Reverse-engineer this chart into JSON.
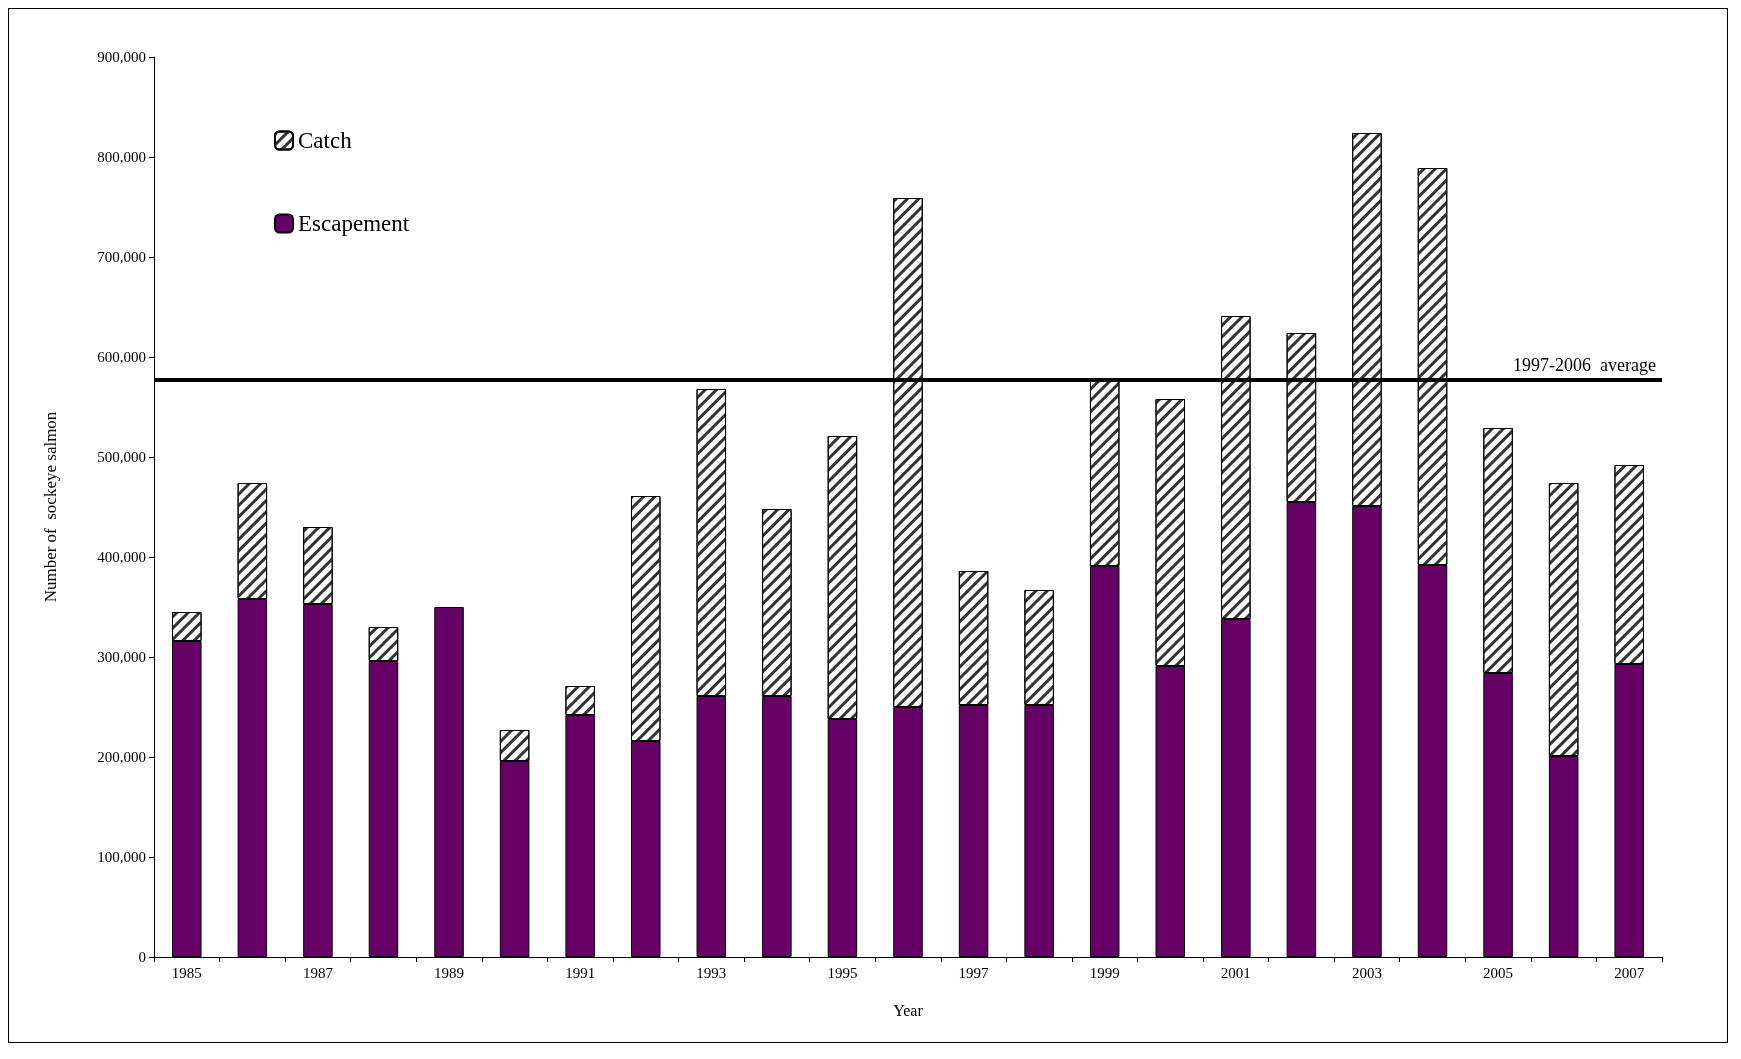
{
  "chart_data": {
    "type": "bar",
    "stacked": true,
    "xlabel": "Year",
    "ylabel": "Number of  sockeye salmon",
    "categories": [
      "1985",
      null,
      "1987",
      null,
      "1989",
      null,
      "1991",
      null,
      "1993",
      null,
      "1995",
      null,
      "1997",
      null,
      "1999",
      null,
      "2001",
      null,
      "2003",
      null,
      "2005",
      null,
      "2007"
    ],
    "series": [
      {
        "name": "Escapement",
        "color": "#660066",
        "values": [
          316000,
          358000,
          353000,
          296000,
          350000,
          196000,
          242000,
          216000,
          261000,
          261000,
          238000,
          250000,
          252000,
          252000,
          391000,
          291000,
          338000,
          455000,
          451000,
          392000,
          284000,
          201000,
          293000
        ]
      },
      {
        "name": "Catch",
        "color": "#ffffff",
        "values": [
          29000,
          116000,
          77000,
          34000,
          null,
          31000,
          29000,
          245000,
          307000,
          187000,
          283000,
          509000,
          134000,
          115000,
          185000,
          267000,
          303000,
          169000,
          373000,
          397000,
          245000,
          273000,
          199000
        ]
      }
    ],
    "ylim": [
      0,
      900000
    ],
    "yticks": [
      0,
      {
        "value": 100000,
        "label": "100,000"
      },
      {
        "value": 200000,
        "label": "200,000"
      },
      {
        "value": 300000,
        "label": "300,000"
      },
      {
        "value": 400000,
        "label": "400,000"
      },
      {
        "value": 500000,
        "label": "500,000"
      },
      {
        "value": 600000,
        "label": "600,000"
      },
      {
        "value": 700000,
        "label": "700,000"
      },
      {
        "value": 800000,
        "label": "800,000"
      },
      {
        "value": 900000,
        "label": "900,000"
      }
    ],
    "ref_lines": [
      {
        "axis": "y",
        "value": 577000,
        "label": "1997-2006  average",
        "color": "#000000"
      }
    ],
    "grid": false,
    "legend": "top left"
  }
}
